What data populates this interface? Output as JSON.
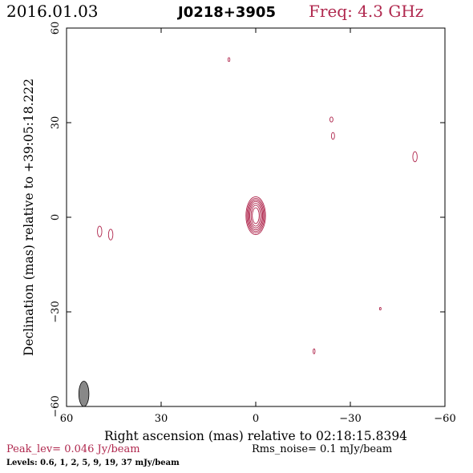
{
  "header": {
    "date": "2016.01.03",
    "source": "J0218+3905",
    "frequency": "Freq: 4.3 GHz"
  },
  "footer": {
    "peak_level": "Peak_lev=  0.046 Jy/beam",
    "rms_noise": "Rms_noise=  0.1 mJy/beam",
    "levels": "Levels: 0.6,   1,   2,   5,   9,   19,   37 mJy/beam"
  },
  "colors": {
    "contour": "#b0284e",
    "beam_fill": "#888888",
    "axis": "#000000"
  },
  "chart_data": {
    "type": "contour",
    "title": "J0218+3905",
    "xlabel": "Right ascension (mas) relative to 02:18:15.8394",
    "ylabel": "Declination (mas) relative to +39:05:18.222",
    "xlim": [
      60,
      -60
    ],
    "ylim": [
      -60,
      60
    ],
    "x_ticks": [
      60,
      30,
      0,
      -30,
      -60
    ],
    "y_ticks": [
      -60,
      -30,
      0,
      30,
      60
    ],
    "x_tick_labels": [
      "60",
      "30",
      "0",
      "−30",
      "−60"
    ],
    "y_tick_labels": [
      "−60",
      "−30",
      "0",
      "30",
      "60"
    ],
    "contour_levels_mJy": [
      0.6,
      1,
      2,
      5,
      9,
      19,
      37
    ],
    "peak_Jy_per_beam": 0.046,
    "rms_noise_mJy_per_beam": 0.1,
    "core": {
      "x": 0.0,
      "y": 0.5,
      "rings": [
        {
          "rx": 3.1,
          "ry": 6.0
        },
        {
          "rx": 2.8,
          "ry": 5.5
        },
        {
          "rx": 2.5,
          "ry": 5.0
        },
        {
          "rx": 2.2,
          "ry": 4.5
        },
        {
          "rx": 1.9,
          "ry": 3.9
        },
        {
          "rx": 1.5,
          "ry": 3.3
        },
        {
          "rx": 1.1,
          "ry": 2.5
        }
      ]
    },
    "components": [
      {
        "x": 49.5,
        "y": -4.5,
        "rx": 0.7,
        "ry": 1.7
      },
      {
        "x": 46.0,
        "y": -5.5,
        "rx": 0.7,
        "ry": 1.7
      },
      {
        "x": 8.5,
        "y": 50.0,
        "rx": 0.3,
        "ry": 0.6
      },
      {
        "x": -24.0,
        "y": 31.0,
        "rx": 0.5,
        "ry": 0.8
      },
      {
        "x": -24.5,
        "y": 25.8,
        "rx": 0.5,
        "ry": 1.1
      },
      {
        "x": -50.5,
        "y": 19.2,
        "rx": 0.7,
        "ry": 1.6
      },
      {
        "x": -39.5,
        "y": -29.0,
        "rx": 0.25,
        "ry": 0.4
      },
      {
        "x": -18.5,
        "y": -42.5,
        "rx": 0.3,
        "ry": 0.8
      }
    ],
    "beam": {
      "x": 54.5,
      "y": -56.0,
      "rx": 1.6,
      "ry": 4.0,
      "angle_deg": 0
    }
  }
}
